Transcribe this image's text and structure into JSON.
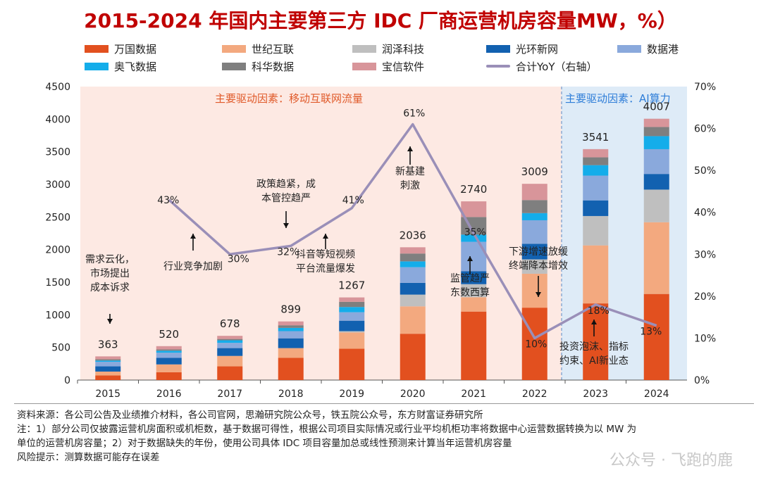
{
  "chart_data": {
    "type": "bar",
    "title": "2015-2024 年国内主要第三方 IDC 厂商运营机房容量MW，%）",
    "categories": [
      "2015",
      "2016",
      "2017",
      "2018",
      "2019",
      "2020",
      "2021",
      "2022",
      "2023",
      "2024"
    ],
    "totals": [
      363,
      520,
      678,
      899,
      1267,
      2036,
      2740,
      3009,
      3541,
      4007
    ],
    "total_labels": [
      "363",
      "520",
      "678",
      "899",
      "1267",
      "2036",
      "2740",
      "3009",
      "3541",
      "4007"
    ],
    "series": [
      {
        "name": "万国数据",
        "color": "#e2501f",
        "values": [
          70,
          120,
          210,
          340,
          480,
          710,
          1050,
          1110,
          1175,
          1320
        ]
      },
      {
        "name": "世纪互联",
        "color": "#f3a97f",
        "values": [
          60,
          120,
          160,
          150,
          250,
          420,
          220,
          520,
          890,
          1100
        ]
      },
      {
        "name": "润泽科技",
        "color": "#bfbfbf",
        "values": [
          0,
          0,
          0,
          0,
          20,
          180,
          200,
          220,
          450,
          500
        ]
      },
      {
        "name": "光环新网",
        "color": "#1261b0",
        "values": [
          80,
          100,
          120,
          150,
          160,
          180,
          200,
          240,
          240,
          240
        ]
      },
      {
        "name": "数据港",
        "color": "#8aa9dc",
        "values": [
          70,
          80,
          80,
          110,
          130,
          240,
          450,
          360,
          380,
          380
        ]
      },
      {
        "name": "奥飞数据",
        "color": "#14adea",
        "values": [
          20,
          30,
          40,
          50,
          80,
          90,
          110,
          110,
          160,
          200
        ]
      },
      {
        "name": "科华数据",
        "color": "#7f7f7f",
        "values": [
          20,
          20,
          20,
          40,
          80,
          120,
          270,
          200,
          120,
          140
        ]
      },
      {
        "name": "宝信软件",
        "color": "#d8959a",
        "values": [
          43,
          50,
          48,
          59,
          67,
          96,
          240,
          249,
          126,
          127
        ]
      }
    ],
    "line": {
      "name": "合计YoY（右轴）",
      "color": "#9a8fb8",
      "x": [
        "2016",
        "2017",
        "2018",
        "2019",
        "2020",
        "2021",
        "2022",
        "2023",
        "2024"
      ],
      "values": [
        43,
        30,
        32,
        41,
        61,
        35,
        10,
        18,
        13
      ],
      "labels": [
        "43%",
        "30%",
        "32%",
        "41%",
        "61%",
        "35%",
        "10%",
        "18%",
        "13%"
      ]
    },
    "y_left": {
      "min": 0,
      "max": 4500,
      "ticks": [
        0,
        500,
        1000,
        1500,
        2000,
        2500,
        3000,
        3500,
        4000,
        4500
      ]
    },
    "y_right": {
      "min": 0,
      "max": 70,
      "ticks": [
        "0%",
        "10%",
        "20%",
        "30%",
        "40%",
        "50%",
        "60%",
        "70%"
      ]
    },
    "regions": [
      {
        "label": "主要驱动因素：移动互联网流量",
        "from": "2015",
        "to": "2022",
        "color": "#fde9e3"
      },
      {
        "label": "主要驱动因素：AI算力",
        "from": "2023",
        "to": "2024",
        "color": "#deebf7"
      }
    ],
    "annotations": [
      {
        "id": "a1",
        "lines": [
          "需求云化，",
          "市场提出",
          "成本诉求"
        ],
        "arrow": "down"
      },
      {
        "id": "a2",
        "lines": [
          "行业竞争加剧"
        ],
        "arrow": "up"
      },
      {
        "id": "a3",
        "lines": [
          "政策趋紧，成",
          "本管控趋严"
        ],
        "arrow": "down"
      },
      {
        "id": "a4",
        "lines": [
          "抖音等短视频",
          "平台流量爆发"
        ],
        "arrow": "up"
      },
      {
        "id": "a5",
        "lines": [
          "新基建",
          "刺激"
        ],
        "arrow": "up"
      },
      {
        "id": "a6",
        "lines": [
          "监管趋严",
          "东数西算"
        ],
        "arrow": "up"
      },
      {
        "id": "a7",
        "lines": [
          "下游增速放缓",
          "终端降本增效"
        ],
        "arrow": "down"
      },
      {
        "id": "a8",
        "lines": [
          "投资泡沫、指标",
          "约束、AI新业态"
        ],
        "arrow": "up"
      }
    ]
  },
  "legend": [
    {
      "name": "万国数据",
      "color": "#e2501f",
      "kind": "bar"
    },
    {
      "name": "世纪互联",
      "color": "#f3a97f",
      "kind": "bar"
    },
    {
      "name": "润泽科技",
      "color": "#bfbfbf",
      "kind": "bar"
    },
    {
      "name": "光环新网",
      "color": "#1261b0",
      "kind": "bar"
    },
    {
      "name": "数据港",
      "color": "#8aa9dc",
      "kind": "bar"
    },
    {
      "name": "奥飞数据",
      "color": "#14adea",
      "kind": "bar"
    },
    {
      "name": "科华数据",
      "color": "#7f7f7f",
      "kind": "bar"
    },
    {
      "name": "宝信软件",
      "color": "#d8959a",
      "kind": "bar"
    },
    {
      "name": "合计YoY（右轴）",
      "color": "#9a8fb8",
      "kind": "line"
    }
  ],
  "footnotes": [
    "资料来源：各公司公告及业绩推介材料，各公司官网，思瀚研究院公众号，铁五院公众号，东方财富证券研究所",
    "注：1）部分公司仅披露运营机房面积或机柜数，基于数据可得性，根据公司项目实际情况或行业平均机柜功率将数据中心运营数据转换为以 MW 为",
    "单位的运营机房容量；2）对于数据缺失的年份，使用公司具体 IDC 项目容量加总或线性预测来计算当年运营机房容量",
    "风险提示：测算数据可能存在误差"
  ],
  "watermark": "公众号 · 飞跑的鹿"
}
